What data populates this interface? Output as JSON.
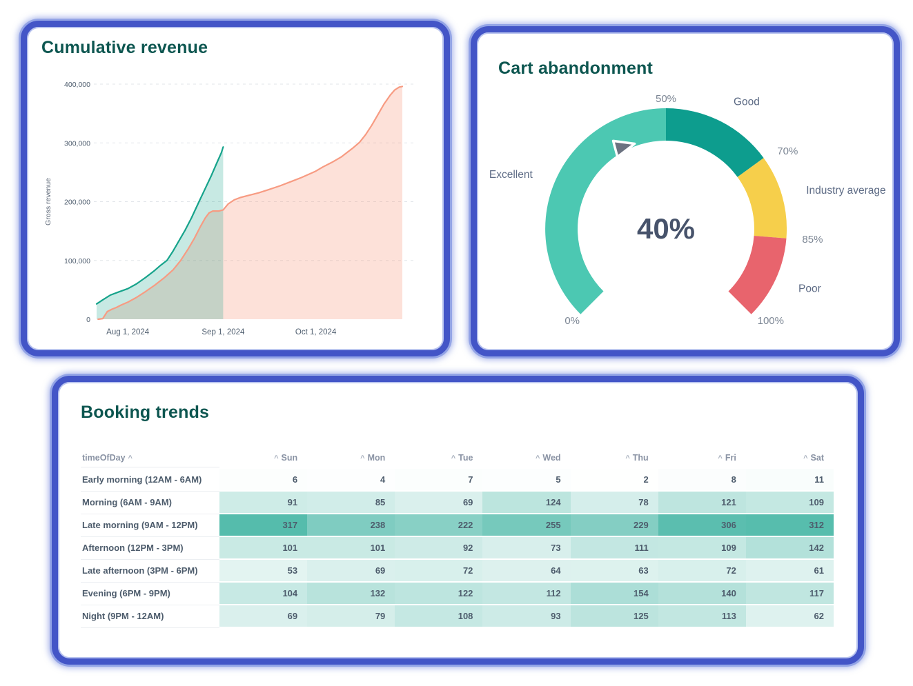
{
  "cards": {
    "revenue": {
      "title": "Cumulative revenue"
    },
    "gauge": {
      "title": "Cart abandonment"
    },
    "booking": {
      "title": "Booking trends"
    }
  },
  "chart_data": [
    {
      "type": "area",
      "title": "Cumulative revenue",
      "xlabel": "",
      "ylabel": "Gross revenue",
      "ylim": [
        0,
        400000
      ],
      "y_ticks": [
        0,
        100000,
        200000,
        300000,
        400000
      ],
      "y_tick_labels": [
        "0",
        "100,000",
        "200,000",
        "300,000",
        "400,000"
      ],
      "x_ticks": [
        {
          "t": 0.102,
          "label": "Aug 1, 2024"
        },
        {
          "t": 0.414,
          "label": "Sep 1, 2024"
        },
        {
          "t": 0.717,
          "label": "Oct 1, 2024"
        }
      ],
      "grid": "dashed-horizontal",
      "note": "x values of points are fractions of the plot width",
      "series": [
        {
          "name": "series-salmon",
          "color": "#f79b82",
          "fill_opacity": 0.3,
          "points": [
            [
              0.005,
              0
            ],
            [
              0.02,
              1000
            ],
            [
              0.035,
              13000
            ],
            [
              0.05,
              17000
            ],
            [
              0.065,
              20000
            ],
            [
              0.08,
              24000
            ],
            [
              0.102,
              29000
            ],
            [
              0.13,
              37000
            ],
            [
              0.16,
              47000
            ],
            [
              0.19,
              58000
            ],
            [
              0.22,
              70000
            ],
            [
              0.25,
              84000
            ],
            [
              0.275,
              100000
            ],
            [
              0.3,
              120000
            ],
            [
              0.32,
              138000
            ],
            [
              0.34,
              158000
            ],
            [
              0.355,
              172000
            ],
            [
              0.368,
              181000
            ],
            [
              0.38,
              184000
            ],
            [
              0.4,
              184000
            ],
            [
              0.414,
              186000
            ],
            [
              0.43,
              196000
            ],
            [
              0.45,
              203000
            ],
            [
              0.47,
              207000
            ],
            [
              0.5,
              211000
            ],
            [
              0.53,
              215000
            ],
            [
              0.56,
              220000
            ],
            [
              0.6,
              227000
            ],
            [
              0.64,
              235000
            ],
            [
              0.67,
              241000
            ],
            [
              0.7,
              248000
            ],
            [
              0.717,
              252000
            ],
            [
              0.74,
              259000
            ],
            [
              0.77,
              267000
            ],
            [
              0.8,
              276000
            ],
            [
              0.82,
              284000
            ],
            [
              0.84,
              292000
            ],
            [
              0.86,
              301000
            ],
            [
              0.88,
              314000
            ],
            [
              0.9,
              330000
            ],
            [
              0.92,
              348000
            ],
            [
              0.94,
              366000
            ],
            [
              0.96,
              381000
            ],
            [
              0.975,
              390000
            ],
            [
              0.99,
              395000
            ],
            [
              1,
              396000
            ]
          ]
        },
        {
          "name": "series-teal",
          "color": "#16a38b",
          "fill_opacity": 0.24,
          "points": [
            [
              0,
              26000
            ],
            [
              0.02,
              33000
            ],
            [
              0.045,
              41000
            ],
            [
              0.07,
              46000
            ],
            [
              0.102,
              52000
            ],
            [
              0.13,
              60000
            ],
            [
              0.16,
              71000
            ],
            [
              0.19,
              83000
            ],
            [
              0.21,
              92000
            ],
            [
              0.23,
              100000
            ],
            [
              0.25,
              116000
            ],
            [
              0.27,
              134000
            ],
            [
              0.29,
              152000
            ],
            [
              0.31,
              172000
            ],
            [
              0.335,
              200000
            ],
            [
              0.355,
              222000
            ],
            [
              0.375,
              244000
            ],
            [
              0.395,
              268000
            ],
            [
              0.408,
              283000
            ],
            [
              0.414,
              293000
            ]
          ]
        }
      ]
    },
    {
      "type": "gauge",
      "title": "Cart abandonment",
      "value": 40,
      "value_label": "40%",
      "start_angle": 225,
      "end_angle": -45,
      "segments": [
        {
          "label": "Excellent",
          "from": 0,
          "to": 50,
          "color": "#4cc8b2"
        },
        {
          "label": "Good",
          "from": 50,
          "to": 70,
          "color": "#0d9d8e"
        },
        {
          "label": "Industry average",
          "from": 70,
          "to": 85,
          "color": "#f6cf4b"
        },
        {
          "label": "Poor",
          "from": 85,
          "to": 100,
          "color": "#e8646d"
        }
      ],
      "ticks": [
        {
          "pct": 0,
          "label": "0%"
        },
        {
          "pct": 50,
          "label": "50%"
        },
        {
          "pct": 70,
          "label": "70%"
        },
        {
          "pct": 85,
          "label": "85%"
        },
        {
          "pct": 100,
          "label": "100%"
        }
      ],
      "needle_color": "#6b7280",
      "value_color": "#47536b"
    },
    {
      "type": "heatmap",
      "title": "Booking trends",
      "row_header": "timeOfDay",
      "columns": [
        "Sun",
        "Mon",
        "Tue",
        "Wed",
        "Thu",
        "Fri",
        "Sat"
      ],
      "rows": [
        {
          "label": "Early morning (12AM - 6AM)",
          "values": [
            6,
            4,
            7,
            5,
            2,
            8,
            11
          ]
        },
        {
          "label": "Morning (6AM - 9AM)",
          "values": [
            91,
            85,
            69,
            124,
            78,
            121,
            109
          ]
        },
        {
          "label": "Late morning (9AM - 12PM)",
          "values": [
            317,
            238,
            222,
            255,
            229,
            306,
            312
          ]
        },
        {
          "label": "Afternoon (12PM - 3PM)",
          "values": [
            101,
            101,
            92,
            73,
            111,
            109,
            142
          ]
        },
        {
          "label": "Late afternoon (3PM - 6PM)",
          "values": [
            53,
            69,
            72,
            64,
            63,
            72,
            61
          ]
        },
        {
          "label": "Evening (6PM - 9PM)",
          "values": [
            104,
            132,
            122,
            112,
            154,
            140,
            117
          ]
        },
        {
          "label": "Night (9PM - 12AM)",
          "values": [
            69,
            79,
            108,
            93,
            125,
            113,
            62
          ]
        }
      ],
      "color_scale": {
        "low": "#ffffff",
        "high": "#28aa96",
        "domain_max": 400
      }
    }
  ]
}
